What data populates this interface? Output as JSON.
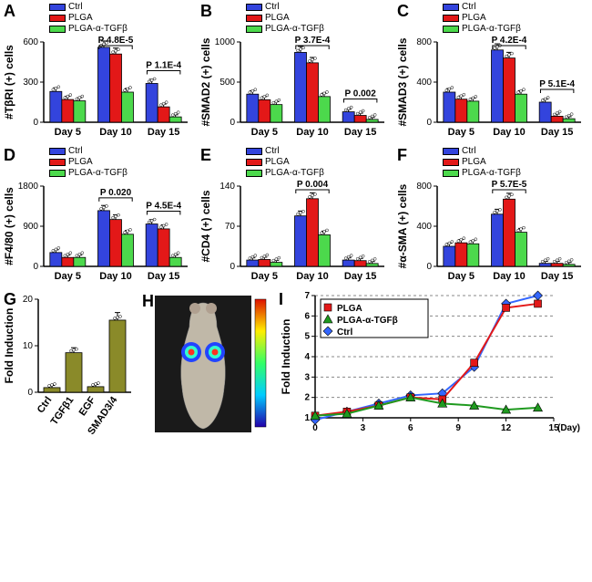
{
  "colors": {
    "ctrl": "#3344dd",
    "plga": "#e31818",
    "plga_tgf": "#4cd94c",
    "olive": "#8a8a29",
    "diamond": "#3366ff"
  },
  "row1_legend": [
    "Ctrl",
    "PLGA",
    "PLGA-α-TGFβ"
  ],
  "panels_top": [
    {
      "label": "A",
      "y_title": "#TβRI (+) cells",
      "y_max": 600,
      "y_ticks": [
        0,
        300,
        600
      ],
      "groups": [
        {
          "cat": "Day 5",
          "vals": [
            230,
            170,
            160
          ]
        },
        {
          "cat": "Day 10",
          "vals": [
            560,
            510,
            225
          ],
          "p": "P 4.8E-5"
        },
        {
          "cat": "Day 15",
          "vals": [
            290,
            115,
            40
          ],
          "p": "P 1.1E-4"
        }
      ]
    },
    {
      "label": "B",
      "y_title": "#SMAD2 (+) cells",
      "y_max": 1000,
      "y_ticks": [
        0,
        500,
        1000
      ],
      "groups": [
        {
          "cat": "Day 5",
          "vals": [
            350,
            280,
            220
          ]
        },
        {
          "cat": "Day 10",
          "vals": [
            870,
            740,
            320
          ],
          "p": "P 3.7E-4"
        },
        {
          "cat": "Day 15",
          "vals": [
            130,
            85,
            35
          ],
          "p": "P 0.002"
        }
      ]
    },
    {
      "label": "C",
      "y_title": "#SMAD3 (+) cells",
      "y_max": 800,
      "y_ticks": [
        0,
        400,
        800
      ],
      "groups": [
        {
          "cat": "Day 5",
          "vals": [
            300,
            230,
            210
          ]
        },
        {
          "cat": "Day 10",
          "vals": [
            720,
            640,
            280
          ],
          "p": "P 4.2E-4"
        },
        {
          "cat": "Day 15",
          "vals": [
            200,
            60,
            35
          ],
          "p": "P 5.1E-4"
        }
      ]
    },
    {
      "label": "D",
      "y_title": "#F4/80 (+) cells",
      "y_max": 1800,
      "y_ticks": [
        0,
        900,
        1800
      ],
      "groups": [
        {
          "cat": "Day 5",
          "vals": [
            310,
            200,
            200
          ]
        },
        {
          "cat": "Day 10",
          "vals": [
            1250,
            1050,
            720
          ],
          "p": "P 0.020"
        },
        {
          "cat": "Day 15",
          "vals": [
            950,
            840,
            200
          ],
          "p": "P 4.5E-4"
        }
      ]
    },
    {
      "label": "E",
      "y_title": "#CD4 (+) cells",
      "y_max": 140,
      "y_ticks": [
        0,
        70,
        140
      ],
      "groups": [
        {
          "cat": "Day 5",
          "vals": [
            11,
            12,
            7
          ]
        },
        {
          "cat": "Day 10",
          "vals": [
            88,
            118,
            55
          ],
          "p": "P 0.004"
        },
        {
          "cat": "Day 15",
          "vals": [
            11,
            10,
            5
          ]
        }
      ]
    },
    {
      "label": "F",
      "y_title": "#α-SMA (+) cells",
      "y_max": 800,
      "y_ticks": [
        0,
        400,
        800
      ],
      "groups": [
        {
          "cat": "Day 5",
          "vals": [
            200,
            235,
            225
          ]
        },
        {
          "cat": "Day 10",
          "vals": [
            520,
            670,
            340
          ],
          "p": "P 5.7E-5"
        },
        {
          "cat": "Day 15",
          "vals": [
            30,
            30,
            20
          ]
        }
      ]
    }
  ],
  "panel_g": {
    "label": "G",
    "y_title": "Fold Induction",
    "y_max": 20,
    "y_ticks": [
      0,
      10,
      20
    ],
    "cats": [
      "Ctrl",
      "TGFβ1",
      "EGF",
      "SMAD3/4"
    ],
    "vals": [
      1,
      8.5,
      1.2,
      15.5
    ]
  },
  "panel_h": {
    "label": "H"
  },
  "panel_i": {
    "label": "I",
    "y_title": "Fold Induction",
    "x_title": "(Day)",
    "y_ticks": [
      1,
      2,
      3,
      4,
      5,
      6,
      7
    ],
    "x_ticks": [
      0,
      3,
      6,
      9,
      12,
      15
    ],
    "legend": [
      "PLGA",
      "PLGA-α-TGFβ",
      "Ctrl"
    ],
    "series": {
      "plga": {
        "color": "#e31818",
        "marker": "square",
        "pts": [
          [
            0,
            1.1
          ],
          [
            2,
            1.3
          ],
          [
            4,
            1.6
          ],
          [
            6,
            2.0
          ],
          [
            8,
            1.9
          ],
          [
            10,
            3.7
          ],
          [
            12,
            6.4
          ],
          [
            14,
            6.6
          ]
        ]
      },
      "plga_tgf": {
        "color": "#1f9a1f",
        "marker": "triangle",
        "pts": [
          [
            0,
            1.1
          ],
          [
            2,
            1.2
          ],
          [
            4,
            1.6
          ],
          [
            6,
            2.0
          ],
          [
            8,
            1.7
          ],
          [
            10,
            1.6
          ],
          [
            12,
            1.4
          ],
          [
            14,
            1.5
          ]
        ]
      },
      "ctrl": {
        "color": "#3366ff",
        "marker": "diamond",
        "pts": [
          [
            0,
            0.9
          ],
          [
            2,
            1.3
          ],
          [
            4,
            1.7
          ],
          [
            6,
            2.1
          ],
          [
            8,
            2.2
          ],
          [
            10,
            3.5
          ],
          [
            12,
            6.6
          ],
          [
            14,
            7.0
          ]
        ]
      }
    }
  }
}
